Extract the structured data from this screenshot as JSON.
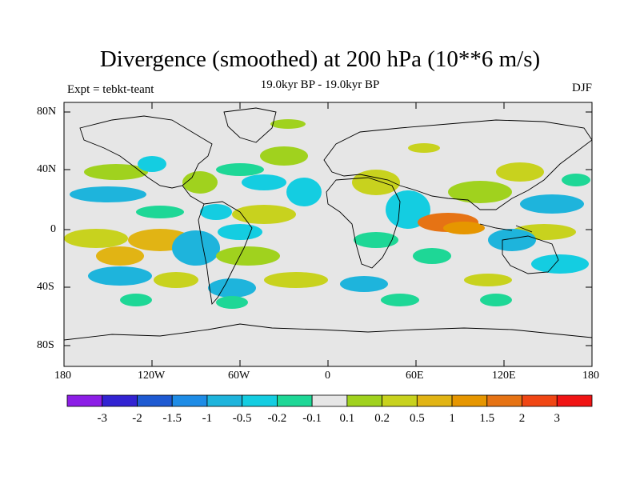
{
  "title": "Divergence (smoothed) at 200 hPa (10**6 m/s)",
  "subtitle": "19.0kyr BP - 19.0kyr BP",
  "left_label": "Expt = tebkt-teant",
  "right_label": "DJF",
  "lat_labels": [
    "80N",
    "40N",
    "0",
    "40S",
    "80S"
  ],
  "lon_labels": [
    "180",
    "120W",
    "60W",
    "0",
    "60E",
    "120E",
    "180"
  ],
  "colorbar": {
    "colors": [
      "#8c1ee6",
      "#3223d2",
      "#1e5ad2",
      "#1e8ce6",
      "#1eb4dc",
      "#14cde1",
      "#1ed796",
      "#e6e6e6",
      "#a0d21e",
      "#c8d21e",
      "#e1b414",
      "#e69600",
      "#e67314",
      "#f04614",
      "#f01414"
    ],
    "labels": [
      "-3",
      "-2",
      "-1.5",
      "-1",
      "-0.5",
      "-0.2",
      "-0.1",
      "0.1",
      "0.2",
      "0.5",
      "1",
      "1.5",
      "2",
      "3"
    ]
  }
}
